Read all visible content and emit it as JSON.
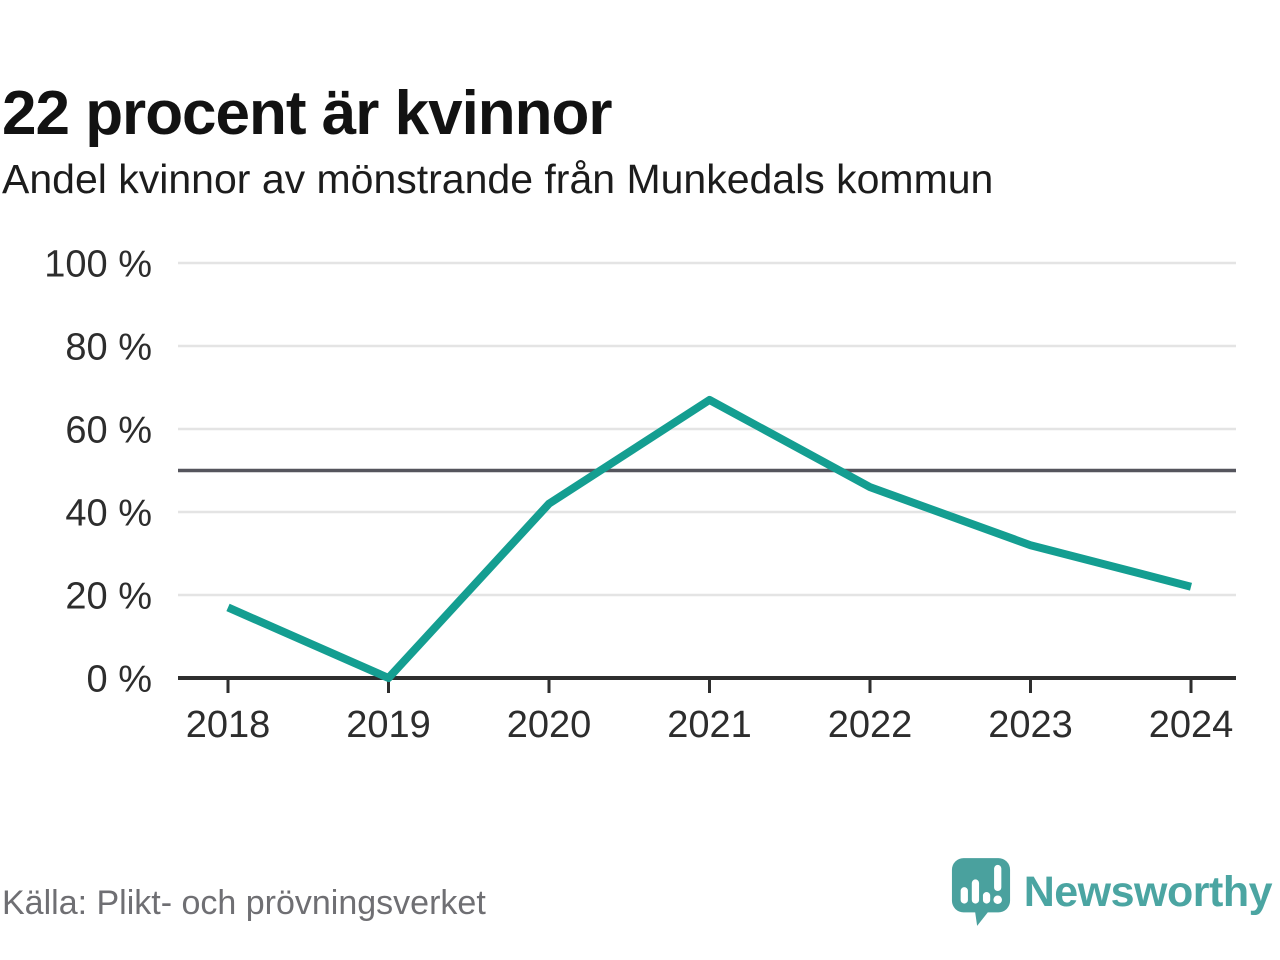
{
  "header": {
    "title": "22 procent är kvinnor",
    "subtitle": "Andel kvinnor av mönstrande från Munkedals kommun"
  },
  "chart_data": {
    "type": "line",
    "title": "22 procent är kvinnor",
    "subtitle": "Andel kvinnor av mönstrande från Munkedals kommun",
    "categories": [
      "2018",
      "2019",
      "2020",
      "2021",
      "2022",
      "2023",
      "2024"
    ],
    "values": [
      17,
      0,
      42,
      67,
      46,
      32,
      22
    ],
    "unit": "%",
    "ylim": [
      0,
      100
    ],
    "yticks": [
      0,
      20,
      40,
      60,
      80,
      100
    ],
    "ytick_label_format": "value + \" %\"",
    "reference_line": 50,
    "grid": true,
    "legend": "none",
    "line_color": "#149e91",
    "gridline_color": "#e4e4e4",
    "reference_line_color": "#55555d",
    "axis_color": "#2e2e2e"
  },
  "footer": {
    "source": "Källa: Plikt- och prövningsverket",
    "brand": "Newsworthy",
    "brand_color": "#4BA5A2",
    "logo_icon": "speech-bubble-bar-chart-exclamation"
  }
}
